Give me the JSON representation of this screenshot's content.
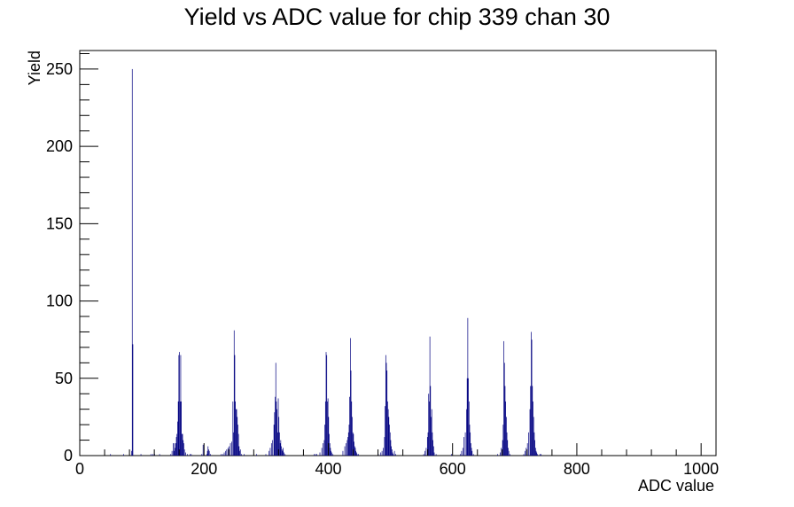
{
  "chart_data": {
    "type": "histogram",
    "title": "Yield vs ADC value for chip 339 chan 30",
    "xlabel": "ADC value",
    "ylabel": "Yield",
    "xlim": [
      0,
      1024
    ],
    "ylim": [
      0,
      262
    ],
    "xticks": [
      0,
      200,
      400,
      600,
      800,
      1000
    ],
    "yticks": [
      0,
      50,
      100,
      150,
      200,
      250
    ],
    "grid": false,
    "line_color": "#000080",
    "bins": [
      [
        49,
        1
      ],
      [
        70,
        1
      ],
      [
        83,
        3
      ],
      [
        84,
        250
      ],
      [
        85,
        72
      ],
      [
        98,
        1
      ],
      [
        114,
        1
      ],
      [
        117,
        1
      ],
      [
        120,
        1
      ],
      [
        128,
        1
      ],
      [
        146,
        1
      ],
      [
        148,
        3
      ],
      [
        150,
        8
      ],
      [
        151,
        3
      ],
      [
        152,
        8
      ],
      [
        153,
        5
      ],
      [
        154,
        8
      ],
      [
        155,
        12
      ],
      [
        156,
        14
      ],
      [
        157,
        22
      ],
      [
        158,
        35
      ],
      [
        159,
        65
      ],
      [
        160,
        67
      ],
      [
        161,
        35
      ],
      [
        162,
        65
      ],
      [
        163,
        35
      ],
      [
        164,
        14
      ],
      [
        165,
        14
      ],
      [
        166,
        10
      ],
      [
        167,
        8
      ],
      [
        168,
        4
      ],
      [
        170,
        2
      ],
      [
        173,
        1
      ],
      [
        177,
        1
      ],
      [
        179,
        1
      ],
      [
        196,
        1
      ],
      [
        198,
        7
      ],
      [
        204,
        1
      ],
      [
        205,
        3
      ],
      [
        206,
        6
      ],
      [
        207,
        4
      ],
      [
        208,
        3
      ],
      [
        210,
        1
      ],
      [
        227,
        1
      ],
      [
        230,
        1
      ],
      [
        232,
        2
      ],
      [
        234,
        3
      ],
      [
        236,
        4
      ],
      [
        238,
        5
      ],
      [
        240,
        6
      ],
      [
        242,
        8
      ],
      [
        244,
        9
      ],
      [
        246,
        35
      ],
      [
        247,
        15
      ],
      [
        248,
        81
      ],
      [
        249,
        65
      ],
      [
        250,
        35
      ],
      [
        251,
        30
      ],
      [
        252,
        30
      ],
      [
        253,
        25
      ],
      [
        254,
        20
      ],
      [
        255,
        14
      ],
      [
        256,
        6
      ],
      [
        257,
        3
      ],
      [
        258,
        4
      ],
      [
        260,
        1
      ],
      [
        264,
        1
      ],
      [
        284,
        1
      ],
      [
        299,
        1
      ],
      [
        304,
        3
      ],
      [
        306,
        5
      ],
      [
        308,
        8
      ],
      [
        310,
        10
      ],
      [
        312,
        20
      ],
      [
        313,
        28
      ],
      [
        314,
        38
      ],
      [
        315,
        60
      ],
      [
        316,
        35
      ],
      [
        317,
        30
      ],
      [
        318,
        15
      ],
      [
        319,
        37
      ],
      [
        320,
        25
      ],
      [
        321,
        15
      ],
      [
        322,
        8
      ],
      [
        323,
        10
      ],
      [
        324,
        6
      ],
      [
        325,
        4
      ],
      [
        326,
        3
      ],
      [
        327,
        5
      ],
      [
        328,
        2
      ],
      [
        330,
        1
      ],
      [
        377,
        1
      ],
      [
        379,
        1
      ],
      [
        381,
        1
      ],
      [
        386,
        2
      ],
      [
        389,
        5
      ],
      [
        391,
        8
      ],
      [
        393,
        10
      ],
      [
        394,
        20
      ],
      [
        395,
        35
      ],
      [
        396,
        67
      ],
      [
        397,
        65
      ],
      [
        398,
        35
      ],
      [
        399,
        37
      ],
      [
        400,
        25
      ],
      [
        401,
        14
      ],
      [
        402,
        8
      ],
      [
        403,
        5
      ],
      [
        404,
        3
      ],
      [
        405,
        2
      ],
      [
        407,
        1
      ],
      [
        423,
        3
      ],
      [
        426,
        6
      ],
      [
        428,
        8
      ],
      [
        430,
        10
      ],
      [
        431,
        12
      ],
      [
        432,
        15
      ],
      [
        433,
        20
      ],
      [
        434,
        38
      ],
      [
        435,
        76
      ],
      [
        436,
        55
      ],
      [
        437,
        35
      ],
      [
        438,
        25
      ],
      [
        439,
        15
      ],
      [
        440,
        14
      ],
      [
        441,
        9
      ],
      [
        442,
        6
      ],
      [
        443,
        5
      ],
      [
        444,
        3
      ],
      [
        445,
        2
      ],
      [
        446,
        1
      ],
      [
        448,
        1
      ],
      [
        480,
        1
      ],
      [
        484,
        2
      ],
      [
        486,
        3
      ],
      [
        488,
        5
      ],
      [
        490,
        12
      ],
      [
        491,
        32
      ],
      [
        492,
        65
      ],
      [
        493,
        60
      ],
      [
        494,
        55
      ],
      [
        495,
        35
      ],
      [
        496,
        30
      ],
      [
        497,
        25
      ],
      [
        498,
        20
      ],
      [
        499,
        15
      ],
      [
        500,
        10
      ],
      [
        501,
        6
      ],
      [
        502,
        4
      ],
      [
        503,
        2
      ],
      [
        504,
        1
      ],
      [
        506,
        3
      ],
      [
        508,
        1
      ],
      [
        553,
        1
      ],
      [
        555,
        3
      ],
      [
        557,
        5
      ],
      [
        559,
        12
      ],
      [
        560,
        15
      ],
      [
        561,
        40
      ],
      [
        562,
        35
      ],
      [
        563,
        77
      ],
      [
        564,
        45
      ],
      [
        565,
        25
      ],
      [
        566,
        30
      ],
      [
        567,
        15
      ],
      [
        568,
        10
      ],
      [
        569,
        6
      ],
      [
        570,
        2
      ],
      [
        573,
        1
      ],
      [
        598,
        1
      ],
      [
        612,
        1
      ],
      [
        614,
        3
      ],
      [
        616,
        5
      ],
      [
        618,
        12
      ],
      [
        620,
        15
      ],
      [
        622,
        30
      ],
      [
        623,
        50
      ],
      [
        624,
        89
      ],
      [
        625,
        50
      ],
      [
        626,
        35
      ],
      [
        627,
        20
      ],
      [
        628,
        15
      ],
      [
        629,
        8
      ],
      [
        630,
        5
      ],
      [
        631,
        3
      ],
      [
        633,
        1
      ],
      [
        672,
        1
      ],
      [
        676,
        2
      ],
      [
        678,
        5
      ],
      [
        680,
        10
      ],
      [
        681,
        20
      ],
      [
        682,
        74
      ],
      [
        683,
        60
      ],
      [
        684,
        45
      ],
      [
        685,
        35
      ],
      [
        686,
        25
      ],
      [
        687,
        15
      ],
      [
        688,
        10
      ],
      [
        689,
        5
      ],
      [
        690,
        3
      ],
      [
        692,
        1
      ],
      [
        714,
        1
      ],
      [
        716,
        3
      ],
      [
        718,
        5
      ],
      [
        720,
        8
      ],
      [
        722,
        15
      ],
      [
        724,
        30
      ],
      [
        725,
        45
      ],
      [
        726,
        80
      ],
      [
        727,
        75
      ],
      [
        728,
        45
      ],
      [
        729,
        35
      ],
      [
        730,
        25
      ],
      [
        731,
        15
      ],
      [
        732,
        10
      ],
      [
        733,
        5
      ],
      [
        734,
        3
      ],
      [
        735,
        2
      ],
      [
        736,
        1
      ],
      [
        740,
        1
      ],
      [
        742,
        1
      ]
    ]
  }
}
